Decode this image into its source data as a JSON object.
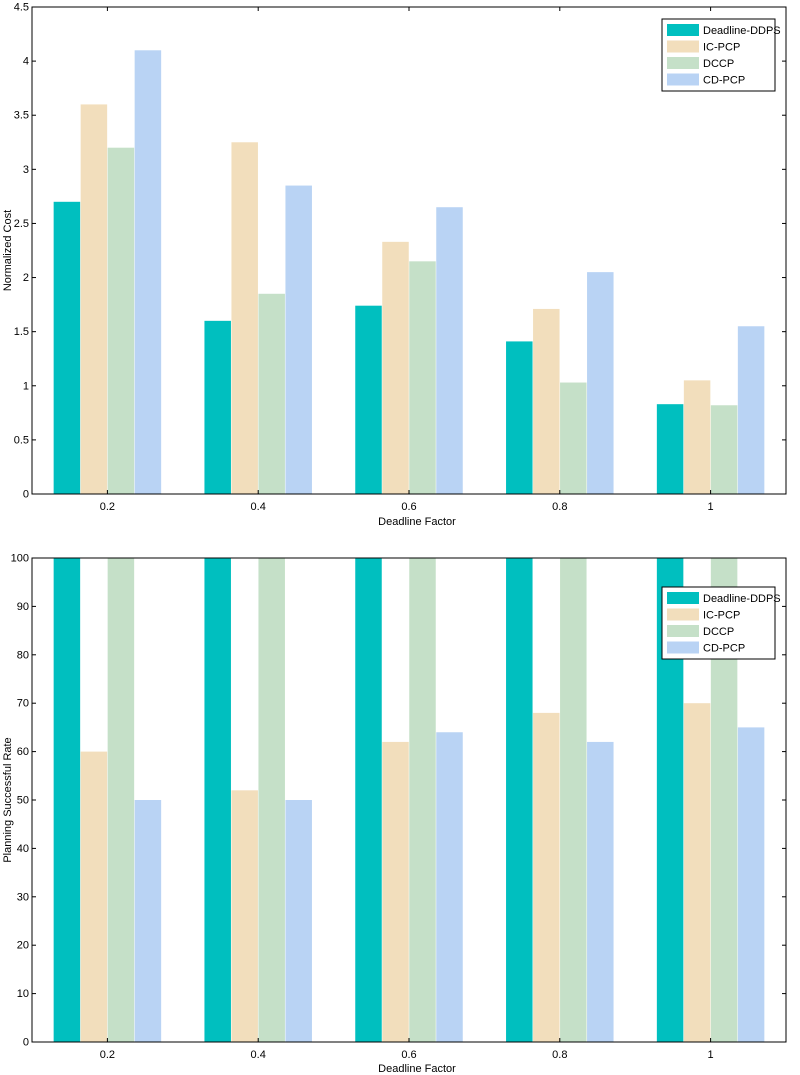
{
  "colors": {
    "Deadline-DDPS": "#00BFBF",
    "IC-PCP": "#F2DEBC",
    "DCCP": "#C5E0C8",
    "CD-PCP": "#B9D3F4",
    "axis": "#000000",
    "background": "#ffffff"
  },
  "chart_data": [
    {
      "type": "bar",
      "title": "",
      "xlabel": "Deadline Factor",
      "ylabel": "Normalized Cost",
      "categories": [
        "0.2",
        "0.4",
        "0.6",
        "0.8",
        "1"
      ],
      "ylim": [
        0,
        4.5
      ],
      "yticks": [
        0,
        0.5,
        1,
        1.5,
        2,
        2.5,
        3,
        3.5,
        4,
        4.5
      ],
      "ytick_labels": [
        "0",
        "0.5",
        "1",
        "1.5",
        "2",
        "2.5",
        "3",
        "3.5",
        "4",
        "4.5"
      ],
      "grid": false,
      "legend": "top-right",
      "series": [
        {
          "name": "Deadline-DDPS",
          "values": [
            2.7,
            1.6,
            1.74,
            1.41,
            0.83
          ]
        },
        {
          "name": "IC-PCP",
          "values": [
            3.6,
            3.25,
            2.33,
            1.71,
            1.05
          ]
        },
        {
          "name": "DCCP",
          "values": [
            3.2,
            1.85,
            2.15,
            1.03,
            0.82
          ]
        },
        {
          "name": "CD-PCP",
          "values": [
            4.1,
            2.85,
            2.65,
            2.05,
            1.55
          ]
        }
      ]
    },
    {
      "type": "bar",
      "title": "",
      "xlabel": "Deadline Factor",
      "ylabel": "Planning Successful Rate",
      "categories": [
        "0.2",
        "0.4",
        "0.6",
        "0.8",
        "1"
      ],
      "ylim": [
        0,
        100
      ],
      "yticks": [
        0,
        10,
        20,
        30,
        40,
        50,
        60,
        70,
        80,
        90,
        100
      ],
      "ytick_labels": [
        "0",
        "10",
        "20",
        "30",
        "40",
        "50",
        "60",
        "70",
        "80",
        "90",
        "100"
      ],
      "grid": false,
      "legend": "top-right",
      "series": [
        {
          "name": "Deadline-DDPS",
          "values": [
            100,
            100,
            100,
            100,
            100
          ]
        },
        {
          "name": "IC-PCP",
          "values": [
            60,
            52,
            62,
            68,
            70
          ]
        },
        {
          "name": "DCCP",
          "values": [
            100,
            100,
            100,
            100,
            100
          ]
        },
        {
          "name": "CD-PCP",
          "values": [
            50,
            50,
            64,
            62,
            65
          ]
        }
      ]
    }
  ]
}
